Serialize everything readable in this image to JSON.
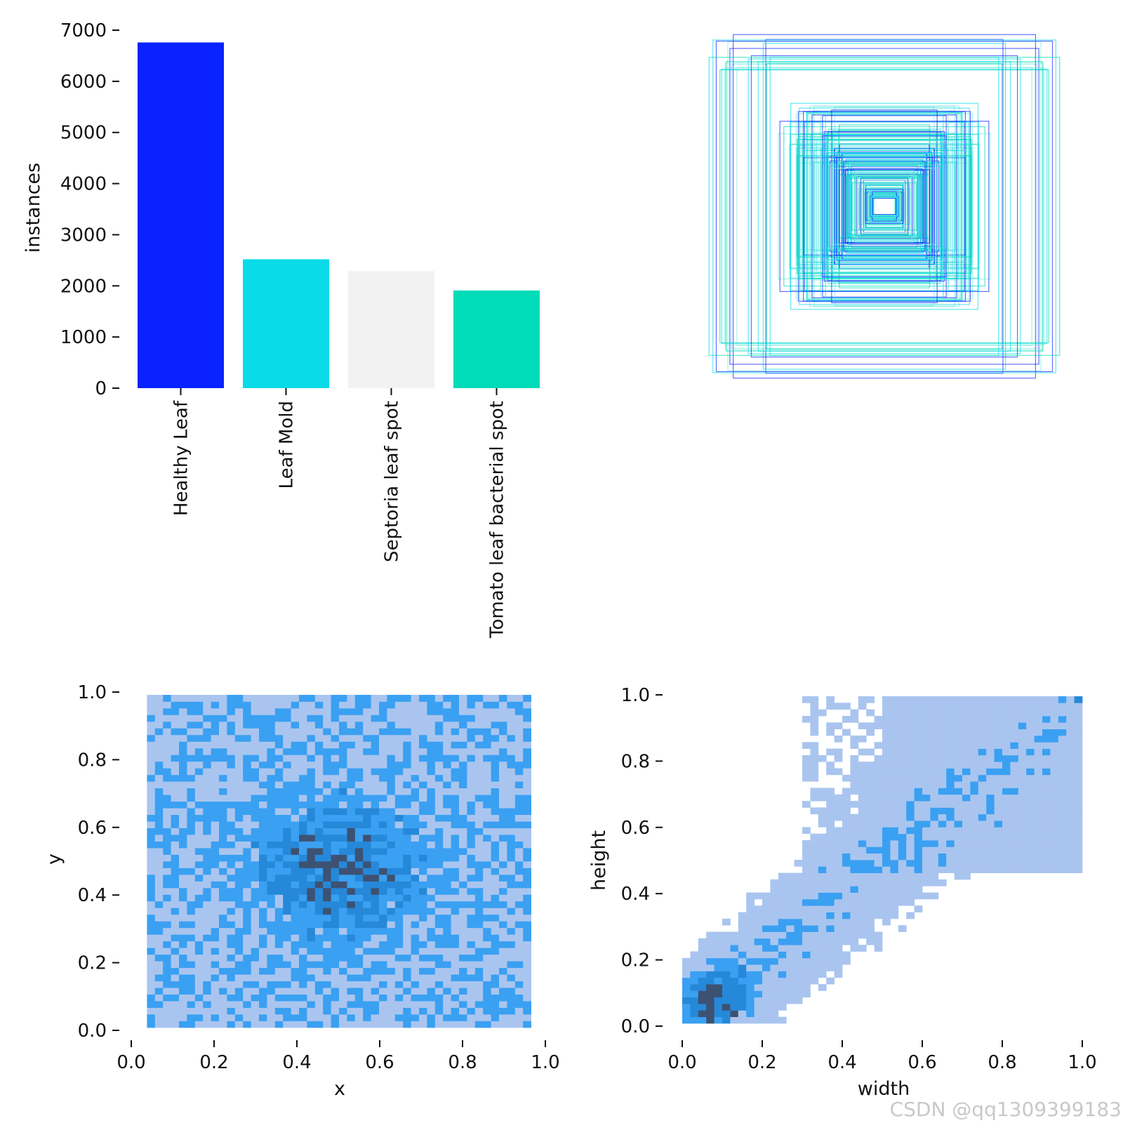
{
  "chart_data": [
    {
      "type": "bar",
      "title": "",
      "xlabel": "",
      "ylabel": "instances",
      "categories": [
        "Healthy Leaf",
        "Leaf Mold",
        "Septoria leaf spot",
        "Tomato leaf bacterial spot"
      ],
      "values": [
        6760,
        2520,
        2290,
        1910
      ],
      "colors": [
        "#0a22ff",
        "#0adbe8",
        "#f2f2f2",
        "#00dcb8"
      ],
      "ylim": [
        0,
        7000
      ],
      "yticks": [
        0,
        1000,
        2000,
        3000,
        4000,
        5000,
        6000,
        7000
      ],
      "ytick_labels": [
        "0",
        "1000",
        "2000",
        "3000",
        "4000",
        "5000",
        "6000",
        "7000"
      ]
    },
    {
      "type": "rectangles",
      "title": "",
      "description_of_content": "bounding box outlines centered on a common point",
      "colors": [
        "#0a22ff",
        "#0adbe8",
        "#00dcb8",
        "#7fe8dc"
      ]
    },
    {
      "type": "heatmap",
      "title": "",
      "xlabel": "x",
      "ylabel": "y",
      "xlim": [
        0,
        1
      ],
      "ylim": [
        0,
        1
      ],
      "xtick_labels": [
        "0.0",
        "0.2",
        "0.4",
        "0.6",
        "0.8",
        "1.0"
      ],
      "ytick_labels": [
        "0.0",
        "0.2",
        "0.4",
        "0.6",
        "0.8",
        "1.0"
      ],
      "bins": 50,
      "peak_center": [
        0.5,
        0.48
      ],
      "colors": [
        "#a9c5ef",
        "#3aa0f2",
        "#2688d8",
        "#3d5272"
      ]
    },
    {
      "type": "heatmap",
      "title": "",
      "xlabel": "width",
      "ylabel": "height",
      "xlim": [
        0,
        1
      ],
      "ylim": [
        0,
        1
      ],
      "xtick_labels": [
        "0.0",
        "0.2",
        "0.4",
        "0.6",
        "0.8",
        "1.0"
      ],
      "ytick_labels": [
        "0.0",
        "0.2",
        "0.4",
        "0.6",
        "0.8",
        "1.0"
      ],
      "bins": 50,
      "peak_center": [
        0.09,
        0.08
      ],
      "colors": [
        "#a9c5ef",
        "#3aa0f2",
        "#2688d8",
        "#3d5272"
      ]
    }
  ],
  "watermark": "CSDN @qq1309399183"
}
